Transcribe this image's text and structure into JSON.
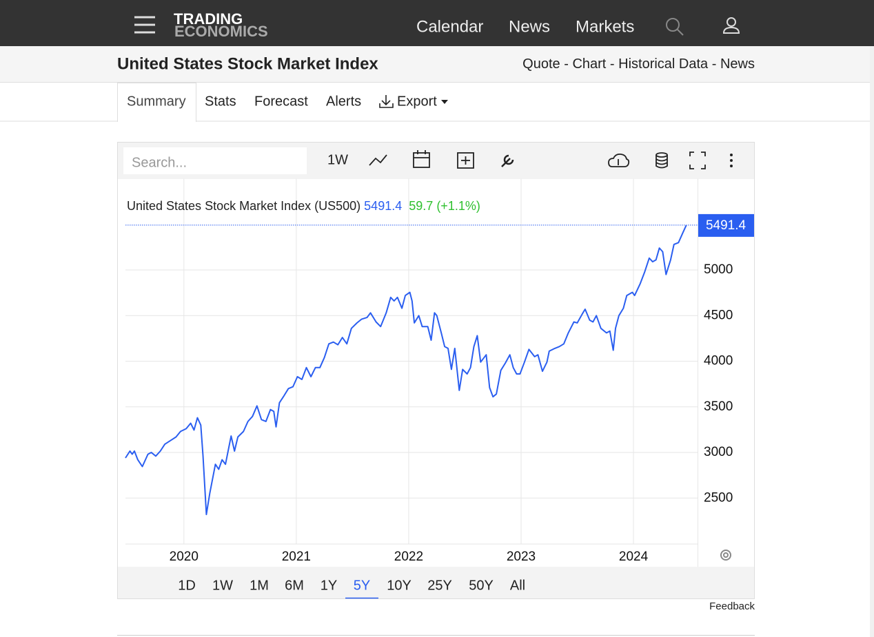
{
  "nav": {
    "logo_top": "TRADING",
    "logo_bottom": "ECONOMICS",
    "links": [
      "Calendar",
      "News",
      "Markets"
    ]
  },
  "header": {
    "title": "United States Stock Market Index",
    "links": [
      "Quote",
      "Chart",
      "Historical Data",
      "News"
    ],
    "separator": "-"
  },
  "tabs": [
    {
      "label": "Summary",
      "active": true
    },
    {
      "label": "Stats"
    },
    {
      "label": "Forecast"
    },
    {
      "label": "Alerts"
    },
    {
      "label": "Export"
    }
  ],
  "toolbar": {
    "search_placeholder": "Search...",
    "interval": "1W"
  },
  "chart_data": {
    "type": "line",
    "last_value": 5491.4,
    "change": 59.7,
    "change_pct": {
      "value": 1.1,
      "label": "(+1.1%)"
    },
    "x": [
      2019.48,
      2019.52,
      2019.54,
      2019.56,
      2019.59,
      2019.63,
      2019.68,
      2019.71,
      2019.75,
      2019.79,
      2019.83,
      2019.88,
      2019.93,
      2019.97,
      2020.02,
      2020.06,
      2020.09,
      2020.12,
      2020.15,
      2020.17,
      2020.2,
      2020.23,
      2020.28,
      2020.31,
      2020.34,
      2020.37,
      2020.42,
      2020.45,
      2020.48,
      2020.53,
      2020.57,
      2020.61,
      2020.65,
      2020.69,
      2020.73,
      2020.77,
      2020.8,
      2020.82,
      2020.85,
      2020.89,
      2020.93,
      2020.97,
      2021.01,
      2021.05,
      2021.09,
      2021.13,
      2021.17,
      2021.21,
      2021.25,
      2021.29,
      2021.33,
      2021.37,
      2021.41,
      2021.45,
      2021.49,
      2021.54,
      2021.58,
      2021.63,
      2021.66,
      2021.71,
      2021.75,
      2021.8,
      2021.84,
      2021.87,
      2021.9,
      2021.94,
      2021.97,
      2022.01,
      2022.03,
      2022.05,
      2022.09,
      2022.12,
      2022.17,
      2022.2,
      2022.23,
      2022.25,
      2022.29,
      2022.32,
      2022.35,
      2022.38,
      2022.41,
      2022.45,
      2022.48,
      2022.52,
      2022.55,
      2022.58,
      2022.61,
      2022.64,
      2022.69,
      2022.72,
      2022.75,
      2022.78,
      2022.82,
      2022.86,
      2022.9,
      2022.93,
      2022.96,
      2022.99,
      2023.03,
      2023.07,
      2023.12,
      2023.15,
      2023.19,
      2023.23,
      2023.25,
      2023.3,
      2023.34,
      2023.38,
      2023.42,
      2023.47,
      2023.5,
      2023.55,
      2023.57,
      2023.61,
      2023.64,
      2023.67,
      2023.71,
      2023.76,
      2023.79,
      2023.82,
      2023.84,
      2023.87,
      2023.91,
      2023.94,
      2023.99,
      2024.01,
      2024.06,
      2024.1,
      2024.14,
      2024.17,
      2024.2,
      2024.23,
      2024.26,
      2024.29,
      2024.33,
      2024.36,
      2024.4,
      2024.44,
      2024.47
    ],
    "series": [
      {
        "name": "United States Stock Market Index (US500)",
        "color": "#2a5ef0",
        "values": [
          2940,
          3015,
          2980,
          3015,
          2920,
          2845,
          2980,
          3000,
          2960,
          3015,
          3090,
          3130,
          3170,
          3230,
          3260,
          3320,
          3245,
          3380,
          3300,
          2965,
          2320,
          2550,
          2870,
          2815,
          2920,
          2870,
          3180,
          3015,
          3170,
          3230,
          3340,
          3395,
          3510,
          3360,
          3340,
          3470,
          3450,
          3280,
          3545,
          3620,
          3700,
          3720,
          3830,
          3800,
          3930,
          3830,
          3930,
          3930,
          4040,
          4190,
          4210,
          4180,
          4260,
          4190,
          4360,
          4420,
          4460,
          4480,
          4530,
          4430,
          4380,
          4530,
          4700,
          4660,
          4700,
          4580,
          4720,
          4755,
          4660,
          4420,
          4500,
          4380,
          4380,
          4230,
          4530,
          4500,
          4310,
          4160,
          4140,
          3910,
          4140,
          3680,
          3910,
          3860,
          3930,
          4160,
          4280,
          3990,
          4070,
          3710,
          3610,
          3640,
          3900,
          3980,
          4070,
          3930,
          3860,
          3860,
          3990,
          4130,
          4050,
          4070,
          3890,
          3990,
          4110,
          4140,
          4160,
          4190,
          4310,
          4430,
          4420,
          4530,
          4570,
          4450,
          4430,
          4500,
          4360,
          4310,
          4330,
          4120,
          4360,
          4500,
          4580,
          4720,
          4755,
          4720,
          4850,
          4980,
          5130,
          5090,
          5110,
          5240,
          5200,
          4950,
          5110,
          5280,
          5300,
          5410,
          5491.4
        ]
      }
    ],
    "xlim": [
      2019.48,
      2024.57
    ],
    "xticks": [
      2020,
      2021,
      2022,
      2023,
      2024
    ],
    "ylim": [
      2000,
      6000
    ],
    "yticks": [
      2500,
      3000,
      3500,
      4000,
      4500,
      5000
    ],
    "grid": true
  },
  "ranges": [
    {
      "label": "1D"
    },
    {
      "label": "1W"
    },
    {
      "label": "1M"
    },
    {
      "label": "6M"
    },
    {
      "label": "1Y"
    },
    {
      "label": "5Y",
      "active": true
    },
    {
      "label": "10Y"
    },
    {
      "label": "25Y"
    },
    {
      "label": "50Y"
    },
    {
      "label": "All"
    }
  ],
  "feedback": "Feedback"
}
